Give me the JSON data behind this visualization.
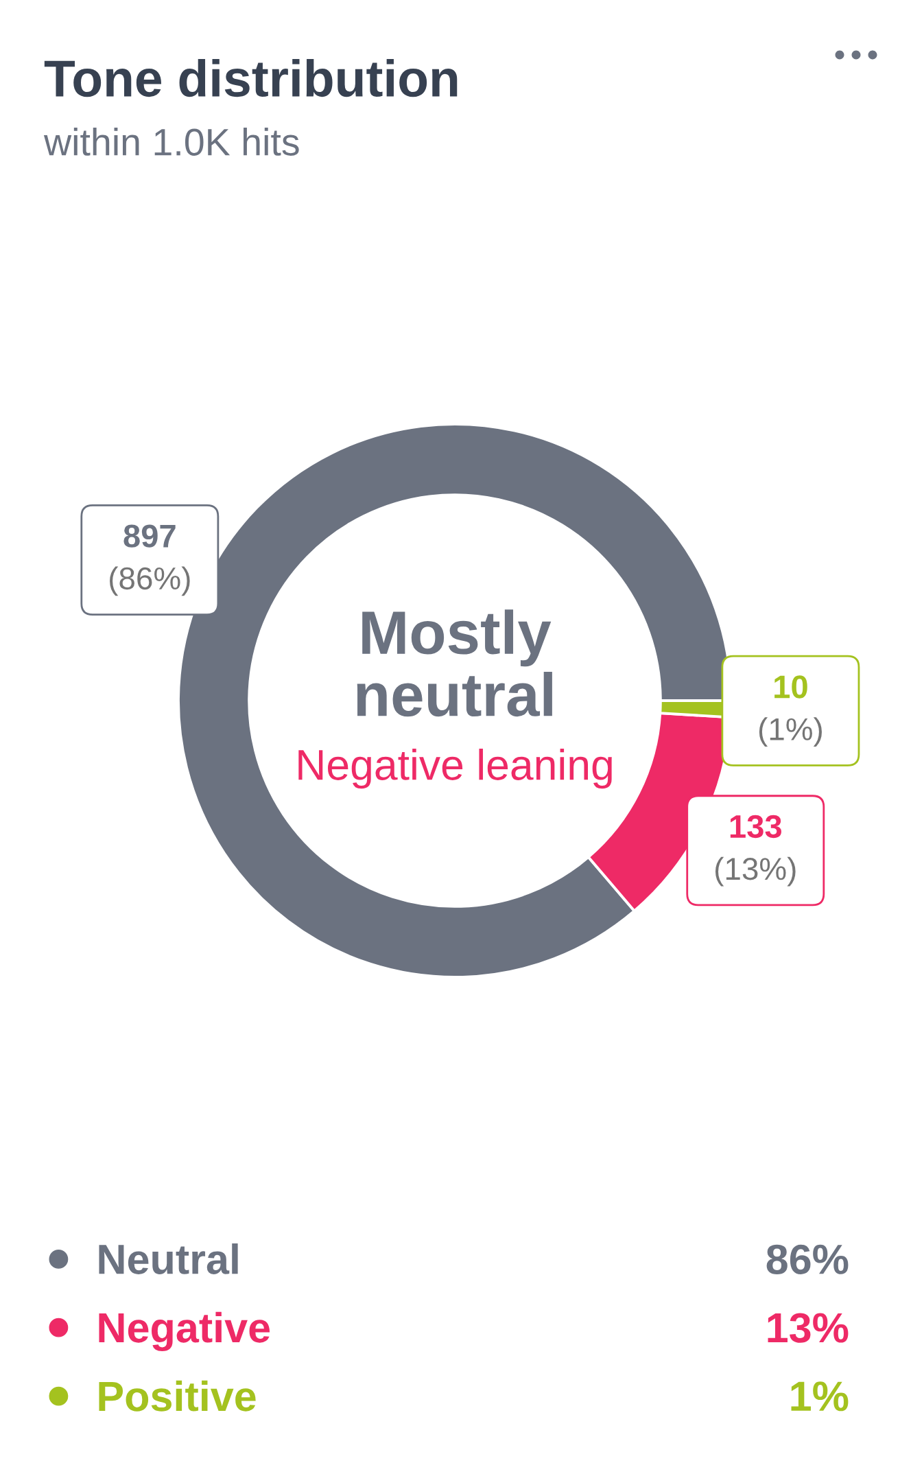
{
  "chart_data": {
    "type": "donut",
    "title": "Tone distribution",
    "subtitle": "within 1.0K hits",
    "categories": [
      "Neutral",
      "Negative",
      "Positive"
    ],
    "values": [
      897,
      133,
      10
    ],
    "colors": [
      "#6b7280",
      "#ee2a66",
      "#a4c21f"
    ],
    "value_labels": [
      "897\n(86%)",
      "133\n(13%)",
      "10\n(1%)"
    ],
    "annotations": [
      "Mostly\nneutral",
      "Negative leaning",
      "86%",
      "13%",
      "1%"
    ],
    "legend": "bottom"
  }
}
